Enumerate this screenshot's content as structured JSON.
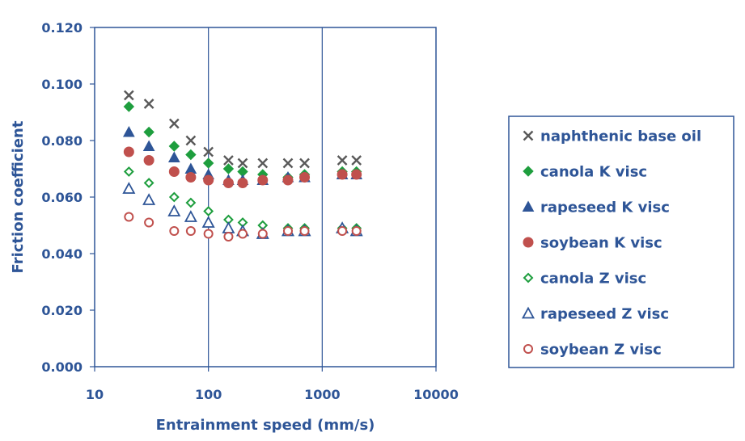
{
  "chart_data": {
    "type": "scatter",
    "title": "",
    "xlabel": "Entrainment speed (mm/s)",
    "ylabel": "Friction coefficient",
    "x_scale": "log",
    "xlim": [
      10,
      10000
    ],
    "ylim": [
      0,
      0.12
    ],
    "x_ticks": [
      "10",
      "100",
      "1000",
      "10000"
    ],
    "y_ticks": [
      "0.000",
      "0.020",
      "0.040",
      "0.060",
      "0.080",
      "0.100",
      "0.120"
    ],
    "grid": "vertical lines at major x ticks",
    "legend_position": "right",
    "series": [
      {
        "name": "naphthenic base oil",
        "marker": "x",
        "color": "#595959",
        "x": [
          20,
          30,
          50,
          70,
          100,
          150,
          200,
          300,
          500,
          700,
          1500,
          2000
        ],
        "y": [
          0.096,
          0.093,
          0.086,
          0.08,
          0.076,
          0.073,
          0.072,
          0.072,
          0.072,
          0.072,
          0.073,
          0.073
        ]
      },
      {
        "name": "canola K visc",
        "marker": "diamond-filled",
        "color": "#1E9E3E",
        "x": [
          20,
          30,
          50,
          70,
          100,
          150,
          200,
          300,
          500,
          700,
          1500,
          2000
        ],
        "y": [
          0.092,
          0.083,
          0.078,
          0.075,
          0.072,
          0.07,
          0.069,
          0.068,
          0.067,
          0.068,
          0.069,
          0.069
        ]
      },
      {
        "name": "rapeseed K visc",
        "marker": "triangle-filled",
        "color": "#2E5597",
        "x": [
          20,
          30,
          50,
          70,
          100,
          150,
          200,
          300,
          500,
          700,
          1500,
          2000
        ],
        "y": [
          0.083,
          0.078,
          0.074,
          0.07,
          0.068,
          0.066,
          0.066,
          0.066,
          0.067,
          0.067,
          0.068,
          0.068
        ]
      },
      {
        "name": "soybean K visc",
        "marker": "circle-filled",
        "color": "#C0504D",
        "x": [
          20,
          30,
          50,
          70,
          100,
          150,
          200,
          300,
          500,
          700,
          1500,
          2000
        ],
        "y": [
          0.076,
          0.073,
          0.069,
          0.067,
          0.066,
          0.065,
          0.065,
          0.066,
          0.066,
          0.067,
          0.068,
          0.068
        ]
      },
      {
        "name": "canola Z visc",
        "marker": "diamond-open",
        "color": "#1E9E3E",
        "x": [
          20,
          30,
          50,
          70,
          100,
          150,
          200,
          300,
          500,
          700,
          1500,
          2000
        ],
        "y": [
          0.069,
          0.065,
          0.06,
          0.058,
          0.055,
          0.052,
          0.051,
          0.05,
          0.049,
          0.049,
          0.049,
          0.049
        ]
      },
      {
        "name": "rapeseed Z visc",
        "marker": "triangle-open",
        "color": "#2E5597",
        "x": [
          20,
          30,
          50,
          70,
          100,
          150,
          200,
          300,
          500,
          700,
          1500,
          2000
        ],
        "y": [
          0.063,
          0.059,
          0.055,
          0.053,
          0.051,
          0.049,
          0.048,
          0.047,
          0.048,
          0.048,
          0.049,
          0.048
        ]
      },
      {
        "name": "soybean Z visc",
        "marker": "circle-open",
        "color": "#C0504D",
        "x": [
          20,
          30,
          50,
          70,
          100,
          150,
          200,
          300,
          500,
          700,
          1500,
          2000
        ],
        "y": [
          0.053,
          0.051,
          0.048,
          0.048,
          0.047,
          0.046,
          0.047,
          0.047,
          0.048,
          0.048,
          0.048,
          0.048
        ]
      }
    ]
  }
}
